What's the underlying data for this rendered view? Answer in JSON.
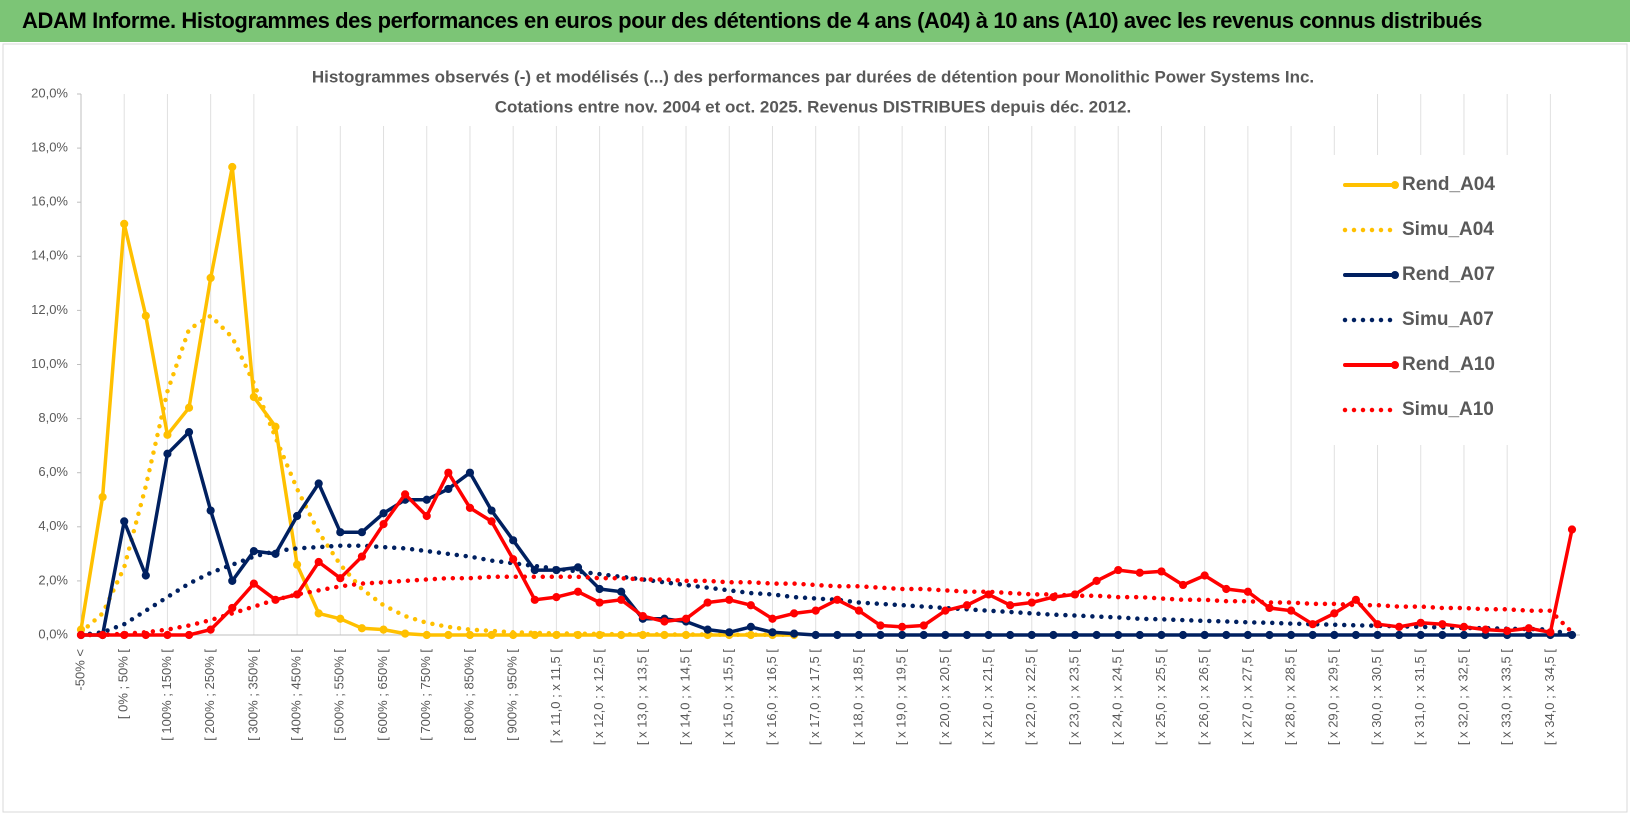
{
  "header": {
    "title": "ADAM Informe. Histogrammes des performances en euros pour des détentions de 4 ans (A04) à 10 ans (A10) avec les revenus connus distribués"
  },
  "chart_data": {
    "type": "line",
    "title": "Histogrammes observés (-) et modélisés (...) des performances par durées de détention pour Monolithic Power Systems Inc.",
    "subtitle": "Cotations entre nov. 2004 et oct. 2025.  Revenus DISTRIBUES depuis déc. 2012.",
    "categories": [
      "-50% <",
      null,
      "[ 0% ; 50% [",
      null,
      "[ 100% ; 150% [",
      null,
      "[ 200% ; 250% [",
      null,
      "[ 300% ; 350% [",
      null,
      "[ 400% ; 450% [",
      null,
      "[ 500% ; 550% [",
      null,
      "[ 600% ; 650% [",
      null,
      "[ 700% ; 750% [",
      null,
      "[ 800% ; 850% [",
      null,
      "[ 900% ; 950% [",
      null,
      "[ x 11,0 ; x 11,5 [",
      null,
      "[ x 12,0 ; x 12,5 [",
      null,
      "[ x 13,0 ; x 13,5 [",
      null,
      "[ x 14,0 ; x 14,5 [",
      null,
      "[ x 15,0 ; x 15,5 [",
      null,
      "[ x 16,0 ; x 16,5 [",
      null,
      "[ x 17,0 ; x 17,5 [",
      null,
      "[ x 18,0 ; x 18,5 [",
      null,
      "[ x 19,0 ; x 19,5 [",
      null,
      "[ x 20,0 ; x 20,5 [",
      null,
      "[ x 21,0 ; x 21,5 [",
      null,
      "[ x 22,0 ; x 22,5 [",
      null,
      "[ x 23,0 ; x 23,5 [",
      null,
      "[ x 24,0 ; x 24,5 [",
      null,
      "[ x 25,0 ; x 25,5 [",
      null,
      "[ x 26,0 ; x 26,5 [",
      null,
      "[ x 27,0 ; x 27,5 [",
      null,
      "[ x 28,0 ; x 28,5 [",
      null,
      "[ x 29,0 ; x 29,5 [",
      null,
      "[ x 30,0 ; x 30,5 [",
      null,
      "[ x 31,0 ; x 31,5 [",
      null,
      "[ x 32,0 ; x 32,5 [",
      null,
      "[ x 33,0 ; x 33,5 [",
      null,
      "[ x 34,0 ; x 34,5 [",
      null
    ],
    "series": [
      {
        "name": "Rend_A04",
        "color": "#ffc000",
        "style": "solid",
        "markers": true,
        "values": [
          0.2,
          5.1,
          15.2,
          11.8,
          7.4,
          8.4,
          13.2,
          17.3,
          8.8,
          7.7,
          2.6,
          0.8,
          0.6,
          0.25,
          0.2,
          0.05,
          0,
          0,
          0,
          0,
          0,
          0,
          0,
          0,
          0,
          0,
          0,
          0,
          0,
          0,
          0,
          0,
          0,
          0,
          null,
          null,
          null,
          null,
          null,
          null,
          null,
          null,
          null,
          null,
          null,
          null,
          null,
          null,
          null,
          null,
          null,
          null,
          null,
          null,
          null,
          null,
          null,
          null,
          null,
          null,
          null,
          null,
          null,
          null,
          null,
          null,
          null,
          null,
          null,
          null
        ]
      },
      {
        "name": "Simu_A04",
        "color": "#ffc000",
        "style": "dotted",
        "markers": false,
        "values": [
          0.1,
          0.8,
          2.5,
          5.5,
          9,
          11.3,
          11.8,
          11,
          9.3,
          7.3,
          5.4,
          3.8,
          2.6,
          1.7,
          1.1,
          0.7,
          0.45,
          0.3,
          0.2,
          0.15,
          0.1,
          0.08,
          0.06,
          0.05,
          0.04,
          0.03,
          0.03,
          0.02,
          0.02,
          0.02,
          0.01,
          0.01,
          0.01,
          0.01,
          null,
          null,
          null,
          null,
          null,
          null,
          null,
          null,
          null,
          null,
          null,
          null,
          null,
          null,
          null,
          null,
          null,
          null,
          null,
          null,
          null,
          null,
          null,
          null,
          null,
          null,
          null,
          null,
          null,
          null,
          null,
          null,
          null,
          null,
          null,
          null
        ]
      },
      {
        "name": "Rend_A07",
        "color": "#002060",
        "style": "solid",
        "markers": true,
        "values": [
          0,
          0,
          4.2,
          2.2,
          6.7,
          7.5,
          4.6,
          2.0,
          3.1,
          3.0,
          4.4,
          5.6,
          3.8,
          3.8,
          4.5,
          5.0,
          5.0,
          5.4,
          6.0,
          4.6,
          3.5,
          2.4,
          2.4,
          2.5,
          1.7,
          1.6,
          0.6,
          0.6,
          0.5,
          0.2,
          0.1,
          0.3,
          0.1,
          0.05,
          0,
          0,
          0,
          0,
          0,
          0,
          0,
          0,
          0,
          0,
          0,
          0,
          0,
          0,
          0,
          0,
          0,
          0,
          0,
          0,
          0,
          0,
          0,
          0,
          0,
          0,
          0,
          0,
          0,
          0,
          0,
          0,
          0,
          0,
          0,
          0
        ]
      },
      {
        "name": "Simu_A07",
        "color": "#002060",
        "style": "dotted",
        "markers": false,
        "values": [
          0,
          0.1,
          0.4,
          0.9,
          1.4,
          1.9,
          2.3,
          2.6,
          2.9,
          3.1,
          3.2,
          3.25,
          3.3,
          3.3,
          3.25,
          3.2,
          3.1,
          3.0,
          2.9,
          2.75,
          2.65,
          2.55,
          2.45,
          2.35,
          2.25,
          2.15,
          2.05,
          1.95,
          1.85,
          1.75,
          1.65,
          1.55,
          1.5,
          1.4,
          1.35,
          1.3,
          1.2,
          1.15,
          1.1,
          1.05,
          1.0,
          0.95,
          0.9,
          0.85,
          0.8,
          0.75,
          0.72,
          0.68,
          0.65,
          0.6,
          0.58,
          0.55,
          0.52,
          0.5,
          0.47,
          0.45,
          0.42,
          0.4,
          0.38,
          0.36,
          0.34,
          0.32,
          0.3,
          0.28,
          0.26,
          0.25,
          0.23,
          0.22,
          0.2,
          0
        ]
      },
      {
        "name": "Rend_A10",
        "color": "#ff0000",
        "style": "solid",
        "markers": true,
        "values": [
          0,
          0,
          0,
          0,
          0,
          0,
          0.2,
          1.0,
          1.9,
          1.3,
          1.5,
          2.7,
          2.1,
          2.9,
          4.1,
          5.2,
          4.4,
          6.0,
          4.7,
          4.2,
          2.8,
          1.3,
          1.4,
          1.6,
          1.2,
          1.3,
          0.7,
          0.5,
          0.6,
          1.2,
          1.3,
          1.1,
          0.6,
          0.8,
          0.9,
          1.3,
          0.9,
          0.35,
          0.3,
          0.35,
          0.9,
          1.1,
          1.5,
          1.1,
          1.2,
          1.4,
          1.5,
          2.0,
          2.4,
          2.3,
          2.35,
          1.85,
          2.2,
          1.7,
          1.6,
          1.0,
          0.9,
          0.4,
          0.8,
          1.3,
          0.4,
          0.3,
          0.45,
          0.4,
          0.3,
          0.2,
          0.15,
          0.25,
          0.1,
          3.9
        ]
      },
      {
        "name": "Simu_A10",
        "color": "#ff0000",
        "style": "dotted",
        "markers": false,
        "values": [
          0,
          0,
          0.05,
          0.1,
          0.2,
          0.35,
          0.55,
          0.8,
          1.05,
          1.3,
          1.5,
          1.65,
          1.8,
          1.9,
          1.95,
          2.0,
          2.05,
          2.1,
          2.1,
          2.15,
          2.15,
          2.15,
          2.15,
          2.15,
          2.1,
          2.1,
          2.05,
          2.05,
          2.0,
          2.0,
          1.95,
          1.95,
          1.9,
          1.9,
          1.85,
          1.8,
          1.8,
          1.75,
          1.7,
          1.7,
          1.65,
          1.6,
          1.6,
          1.55,
          1.5,
          1.5,
          1.45,
          1.45,
          1.4,
          1.4,
          1.35,
          1.3,
          1.3,
          1.25,
          1.25,
          1.2,
          1.2,
          1.15,
          1.15,
          1.1,
          1.1,
          1.05,
          1.05,
          1.0,
          1.0,
          0.95,
          0.95,
          0.9,
          0.9,
          0.1
        ]
      }
    ],
    "ylim": [
      0,
      20
    ],
    "yticks": [
      {
        "value": 0,
        "label": "0,0%"
      },
      {
        "value": 2,
        "label": "2,0%"
      },
      {
        "value": 4,
        "label": "4,0%"
      },
      {
        "value": 6,
        "label": "6,0%"
      },
      {
        "value": 8,
        "label": "8,0%"
      },
      {
        "value": 10,
        "label": "10,0%"
      },
      {
        "value": 12,
        "label": "12,0%"
      },
      {
        "value": 14,
        "label": "14,0%"
      },
      {
        "value": 16,
        "label": "16,0%"
      },
      {
        "value": 18,
        "label": "18,0%"
      },
      {
        "value": 20,
        "label": "20,0%"
      }
    ],
    "grid": true,
    "legend": "right"
  }
}
